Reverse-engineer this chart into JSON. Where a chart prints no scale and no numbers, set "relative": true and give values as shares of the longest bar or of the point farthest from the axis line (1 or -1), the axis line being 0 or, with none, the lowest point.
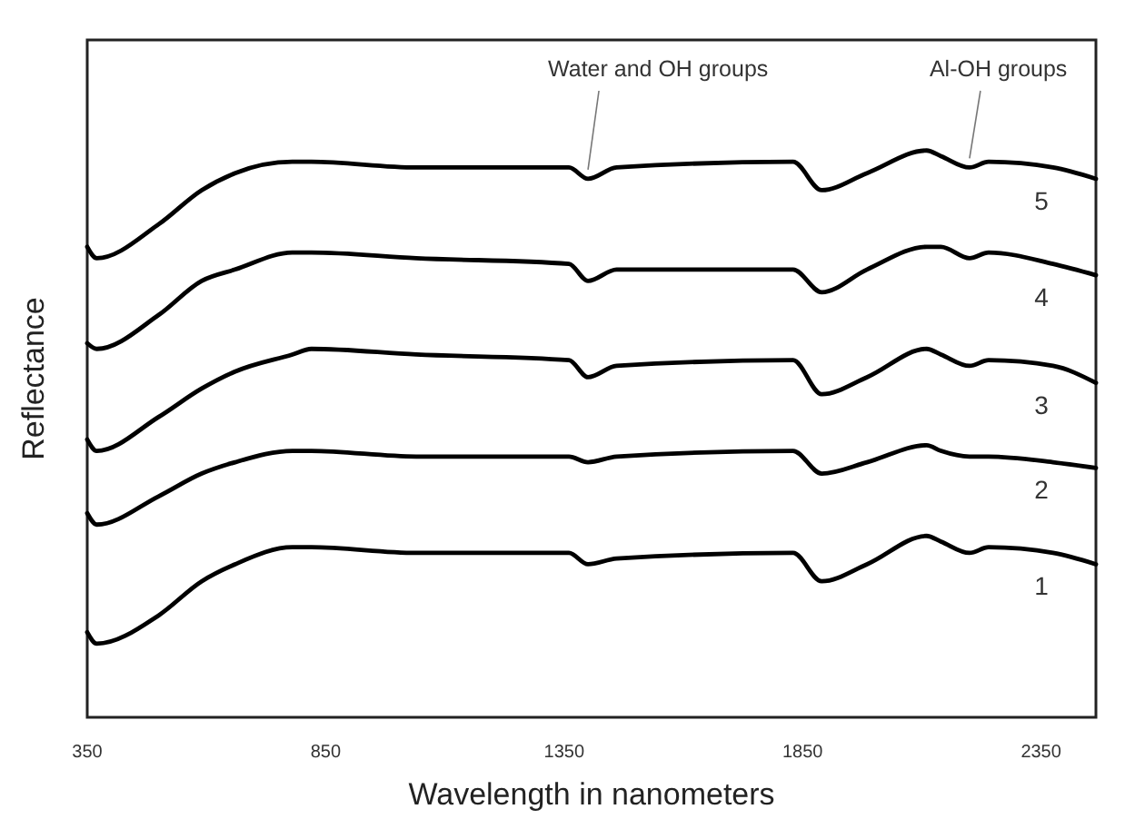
{
  "chart_data": {
    "type": "line",
    "relative": true,
    "xlabel": "Wavelength in nanometers",
    "ylabel": "Reflectance",
    "x": [
      350,
      370,
      500,
      590,
      660,
      780,
      820,
      1040,
      1360,
      1400,
      1460,
      1830,
      1890,
      1985,
      2110,
      2140,
      2200,
      2240,
      2375,
      2465
    ],
    "xlim": [
      350,
      2465
    ],
    "xticks": [
      350,
      850,
      1350,
      1850,
      2350
    ],
    "series": [
      {
        "name": "1",
        "color": "#000000",
        "values": [
          0.15,
          0.13,
          0.18,
          0.24,
          0.27,
          0.3,
          0.3,
          0.29,
          0.29,
          0.27,
          0.28,
          0.29,
          0.24,
          0.27,
          0.32,
          0.31,
          0.29,
          0.3,
          0.29,
          0.27
        ]
      },
      {
        "name": "2",
        "color": "#000000",
        "values": [
          0.36,
          0.34,
          0.39,
          0.43,
          0.45,
          0.47,
          0.47,
          0.46,
          0.46,
          0.45,
          0.46,
          0.47,
          0.43,
          0.45,
          0.48,
          0.47,
          0.46,
          0.46,
          0.45,
          0.44
        ]
      },
      {
        "name": "3",
        "color": "#000000",
        "values": [
          0.49,
          0.47,
          0.53,
          0.58,
          0.61,
          0.64,
          0.65,
          0.64,
          0.63,
          0.6,
          0.62,
          0.63,
          0.57,
          0.6,
          0.65,
          0.64,
          0.62,
          0.63,
          0.62,
          0.59
        ]
      },
      {
        "name": "4",
        "color": "#000000",
        "values": [
          0.66,
          0.65,
          0.71,
          0.77,
          0.79,
          0.82,
          0.82,
          0.81,
          0.8,
          0.77,
          0.79,
          0.79,
          0.75,
          0.79,
          0.83,
          0.83,
          0.81,
          0.82,
          0.8,
          0.78
        ]
      },
      {
        "name": "5",
        "color": "#000000",
        "values": [
          0.83,
          0.81,
          0.87,
          0.93,
          0.96,
          0.98,
          0.98,
          0.97,
          0.97,
          0.95,
          0.97,
          0.98,
          0.93,
          0.96,
          1,
          0.99,
          0.97,
          0.98,
          0.97,
          0.95
        ]
      }
    ],
    "annotations": [
      {
        "text": "Water and OH groups",
        "x": 1400,
        "y": 0.95
      },
      {
        "text": "Al-OH groups",
        "x": 2200,
        "y": 0.97
      }
    ],
    "grid": false,
    "marker": "none",
    "line_style": "solid"
  }
}
